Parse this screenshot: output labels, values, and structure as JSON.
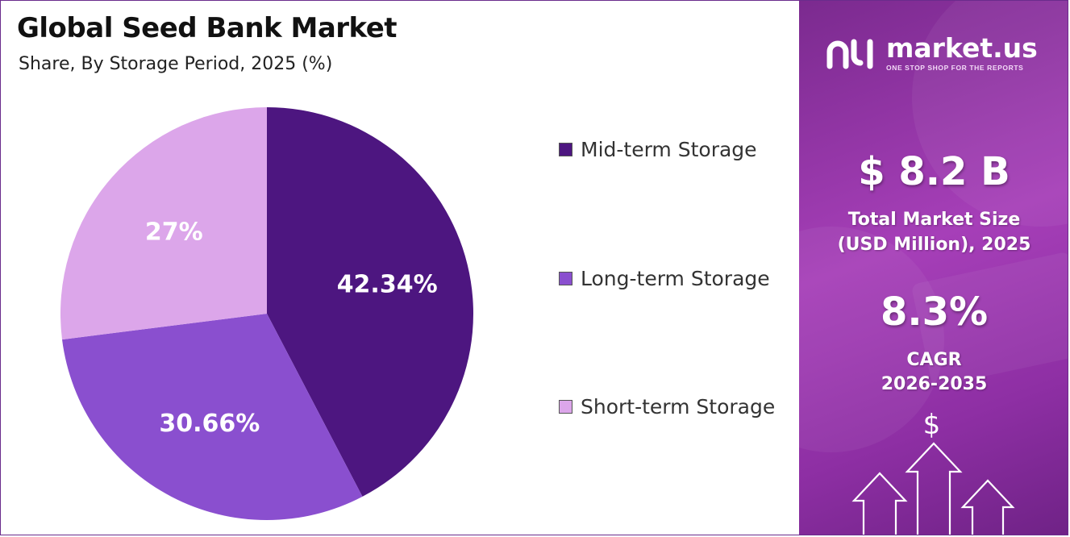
{
  "header": {
    "title": "Global Seed Bank Market",
    "subtitle": "Share, By Storage Period, 2025 (%)"
  },
  "chart_data": {
    "type": "pie",
    "title": "Global Seed Bank Market",
    "subtitle": "Share, By Storage Period, 2025 (%)",
    "categories": [
      "Mid-term Storage",
      "Long-term Storage",
      "Short-term Storage"
    ],
    "values": [
      42.34,
      30.66,
      27
    ],
    "labels": [
      "42.34%",
      "30.66%",
      "27%"
    ],
    "colors": [
      "#4d1680",
      "#8a4fcf",
      "#dca6ea"
    ],
    "legend_position": "right",
    "start": "top, clockwise"
  },
  "panel": {
    "brand_name": "market.us",
    "brand_tagline": "ONE STOP SHOP FOR THE REPORTS",
    "market_size_value": "$ 8.2 B",
    "market_size_label_1": "Total Market Size",
    "market_size_label_2": "(USD Million), 2025",
    "cagr_value": "8.3%",
    "cagr_label_1": "CAGR",
    "cagr_label_2": "2026-2035",
    "currency_symbol": "$",
    "icons": [
      "logo-icon",
      "dollar-icon",
      "up-arrow-icon"
    ]
  }
}
